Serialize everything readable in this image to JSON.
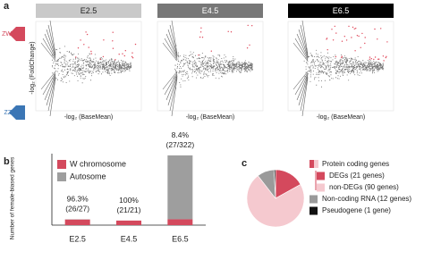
{
  "panel_labels": [
    "a",
    "b",
    "c"
  ],
  "panel_a": {
    "stages": [
      "E2.5",
      "E4.5",
      "E6.5"
    ],
    "y_label": "-log₂ (FoldChange)",
    "x_label": "-log₂ (BaseMean)",
    "up_label": "ZW",
    "down_label": "ZZ"
  },
  "chart_data": [
    {
      "type": "bar",
      "stacked": true,
      "y_label": "Number of female-biased genes",
      "categories": [
        "E2.5",
        "E4.5",
        "E6.5"
      ],
      "series": [
        {
          "name": "W chromosome",
          "color": "#d4495d",
          "values": [
            26,
            21,
            27
          ]
        },
        {
          "name": "Autosome",
          "color": "#9e9e9e",
          "values": [
            1,
            0,
            295
          ]
        }
      ],
      "ylim": [
        0,
        330
      ],
      "annotations": [
        [
          "96.3%",
          "(26/27)"
        ],
        [
          "100%",
          "(21/21)"
        ],
        [
          "8.4%",
          "(27/322)"
        ]
      ]
    },
    {
      "type": "pie",
      "legend_title": "Protein coding genes",
      "categories": [
        "DEGs (21 genes)",
        "non-DEGs (90 genes)",
        "Non-coding RNA (12 genes)",
        "Pseudogene (1 gene)"
      ],
      "values": [
        21,
        90,
        12,
        1
      ],
      "colors": [
        "#d4495d",
        "#f5c9cf",
        "#9a9a9a",
        "#111111"
      ]
    }
  ]
}
